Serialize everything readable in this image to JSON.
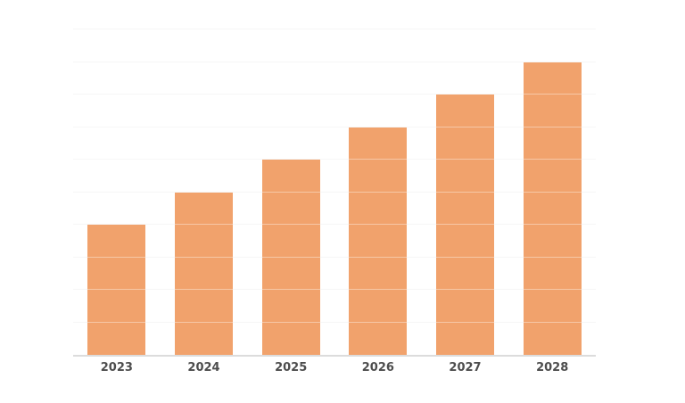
{
  "chart_data": {
    "type": "bar",
    "title": "",
    "xlabel": "",
    "ylabel": "",
    "categories": [
      "2023",
      "2024",
      "2025",
      "2026",
      "2027",
      "2028"
    ],
    "values": [
      4,
      5,
      6,
      7,
      8,
      9
    ],
    "ylim": [
      0,
      10
    ],
    "gridline_step": 1,
    "grid": "horizontal",
    "y_tick_labels_visible": false,
    "legend_position": "none"
  },
  "colors": {
    "bar": "#F1A26C",
    "gridline": "#F1F1F1",
    "gridline_over_bar": "rgba(255,255,255,0.4)",
    "axis_line": "#DCDCDC",
    "tick_label": "#4D4D4D",
    "background": "#FFFFFF"
  }
}
